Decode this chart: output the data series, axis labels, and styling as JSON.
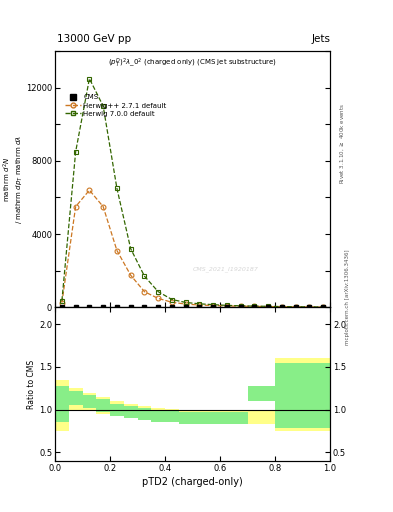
{
  "title_top": "13000 GeV pp",
  "title_right": "Jets",
  "plot_title": "$(p_T^D)^2\\lambda\\_0^2$ (charged only) (CMS jet substructure)",
  "xlabel": "pTD2 (charged-only)",
  "ylabel_main": "mathrm d$^2$N / mathrm d $p_T$ mathrm d $\\lambda$",
  "ylabel_ratio": "Ratio to CMS",
  "right_label1": "Rivet 3.1.10, $\\geq$ 400k events",
  "right_label2": "mcplots.cern.ch [arXiv:1306.3436]",
  "watermark": "CMS_2021_I1920187",
  "x_herwig1": [
    0.025,
    0.075,
    0.125,
    0.175,
    0.225,
    0.275,
    0.325,
    0.375,
    0.425,
    0.475,
    0.525,
    0.575,
    0.625,
    0.675,
    0.725,
    0.775,
    0.825,
    0.875,
    0.925,
    0.975
  ],
  "y_herwig1": [
    250,
    5500,
    6400,
    5500,
    3100,
    1750,
    850,
    480,
    270,
    170,
    120,
    90,
    70,
    55,
    45,
    35,
    25,
    18,
    12,
    8
  ],
  "x_herwig2": [
    0.025,
    0.075,
    0.125,
    0.175,
    0.225,
    0.275,
    0.325,
    0.375,
    0.425,
    0.475,
    0.525,
    0.575,
    0.625,
    0.675,
    0.725,
    0.775,
    0.825,
    0.875,
    0.925,
    0.975
  ],
  "y_herwig2": [
    350,
    8500,
    12500,
    11000,
    6500,
    3200,
    1700,
    850,
    420,
    260,
    185,
    140,
    100,
    75,
    58,
    48,
    36,
    25,
    18,
    10
  ],
  "x_cms": [
    0.025,
    0.075,
    0.125,
    0.175,
    0.225,
    0.275,
    0.325,
    0.375,
    0.425,
    0.475,
    0.525,
    0.575,
    0.625,
    0.675,
    0.725,
    0.775,
    0.825,
    0.875,
    0.925,
    0.975
  ],
  "y_cms": [
    0,
    0,
    0,
    0,
    0,
    0,
    0,
    0,
    0,
    0,
    0,
    0,
    0,
    0,
    0,
    0,
    0,
    0,
    0,
    0
  ],
  "color_herwig1": "#cc7722",
  "color_herwig2": "#336600",
  "color_cms": "#000000",
  "ratio_bins_x": [
    0.0,
    0.05,
    0.1,
    0.15,
    0.2,
    0.25,
    0.3,
    0.35,
    0.4,
    0.45,
    0.5,
    0.55,
    0.6,
    0.65,
    0.7,
    0.75,
    0.8,
    1.0
  ],
  "h1_lo": [
    0.75,
    1.0,
    1.0,
    0.95,
    0.93,
    0.9,
    0.88,
    0.86,
    0.85,
    0.83,
    0.83,
    0.83,
    0.83,
    0.83,
    0.83,
    0.83,
    0.75,
    0.75
  ],
  "h1_hi": [
    1.35,
    1.25,
    1.2,
    1.15,
    1.1,
    1.07,
    1.04,
    1.02,
    1.01,
    1.0,
    1.0,
    1.0,
    1.0,
    1.0,
    1.0,
    1.0,
    1.6,
    1.6
  ],
  "h2_lo": [
    0.85,
    1.05,
    1.02,
    0.97,
    0.93,
    0.9,
    0.88,
    0.86,
    0.85,
    0.83,
    0.83,
    0.83,
    0.83,
    0.83,
    1.1,
    1.1,
    0.78,
    0.78
  ],
  "h2_hi": [
    1.28,
    1.22,
    1.17,
    1.12,
    1.07,
    1.04,
    1.02,
    1.0,
    0.99,
    0.97,
    0.97,
    0.97,
    0.97,
    0.97,
    1.28,
    1.28,
    1.55,
    1.55
  ],
  "ylim_main": [
    0,
    14000
  ],
  "ylim_ratio": [
    0.4,
    2.2
  ],
  "yticks_main": [
    0,
    2000,
    4000,
    6000,
    8000,
    10000,
    12000,
    14000
  ],
  "yticks_ratio": [
    0.5,
    1.0,
    1.5,
    2.0
  ],
  "xlim": [
    0.0,
    1.0
  ]
}
